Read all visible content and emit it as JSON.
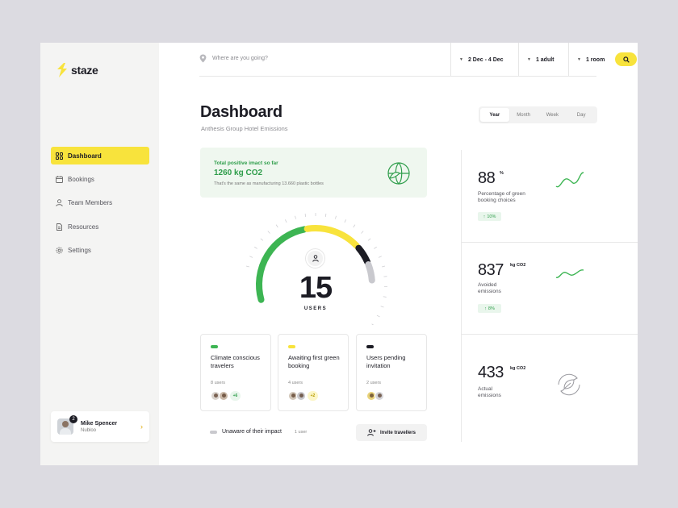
{
  "brand": {
    "name": "staze",
    "accent": "#f8e33c",
    "green": "#2e9d4a"
  },
  "sidebar": {
    "items": [
      {
        "label": "Dashboard",
        "icon": "grid-icon",
        "active": true
      },
      {
        "label": "Bookings",
        "icon": "calendar-icon",
        "active": false
      },
      {
        "label": "Team Members",
        "icon": "user-icon",
        "active": false
      },
      {
        "label": "Resources",
        "icon": "document-icon",
        "active": false
      },
      {
        "label": "Settings",
        "icon": "gear-icon",
        "active": false
      }
    ],
    "user": {
      "name": "Mike Spencer",
      "org": "Nubloo",
      "notifications": "2"
    }
  },
  "topbar": {
    "search_placeholder": "Where are you going?",
    "dates": "2 Dec - 4 Dec",
    "guests": "1 adult",
    "rooms": "1 room"
  },
  "header": {
    "title": "Dashboard",
    "subtitle": "Anthesis Group Hotel Emissions",
    "periods": [
      "Year",
      "Month",
      "Week",
      "Day"
    ],
    "active_period": "Year"
  },
  "impact": {
    "label": "Total positive imact so far",
    "value": "1260 kg CO2",
    "note": "That's the same as manufacturing 13.660 plastic bottles"
  },
  "gauge": {
    "value": "15",
    "unit": "USERS",
    "segments": [
      {
        "name": "green",
        "fraction": 0.5
      },
      {
        "name": "yellow",
        "fraction": 0.3
      },
      {
        "name": "dark",
        "fraction": 0.1
      },
      {
        "name": "grey",
        "fraction": 0.1
      }
    ]
  },
  "cards": [
    {
      "title": "Climate conscious travelers",
      "count": "8 users",
      "more": "+6",
      "color": "#3db553"
    },
    {
      "title": "Awaiting first green booking",
      "count": "4 users",
      "more": "+2",
      "color": "#f8e33c"
    },
    {
      "title": "Users pending invitation",
      "count": "2 users",
      "more": "",
      "color": "#1c1c24"
    }
  ],
  "unaware": {
    "label": "Unaware of their impact",
    "count": "1 user"
  },
  "invite": {
    "label": "Invite travellers"
  },
  "stats": [
    {
      "value": "88",
      "unit": "%",
      "label": "Percentage of green booking choices",
      "change": "10%"
    },
    {
      "value": "837",
      "unit": "kg CO2",
      "label": "Avoided emissions",
      "change": "8%"
    },
    {
      "value": "433",
      "unit": "kg CO2",
      "label": "Actual emissions",
      "change": ""
    }
  ]
}
